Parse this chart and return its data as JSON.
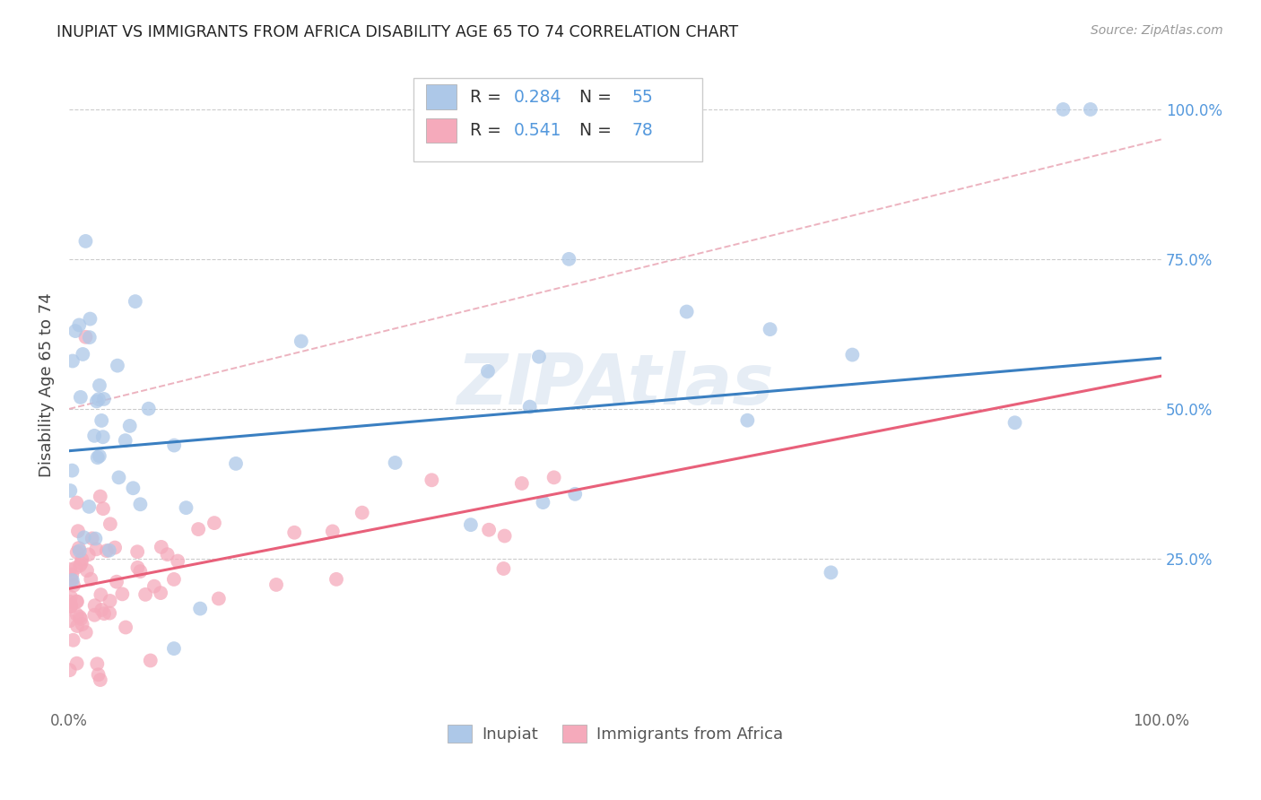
{
  "title": "INUPIAT VS IMMIGRANTS FROM AFRICA DISABILITY AGE 65 TO 74 CORRELATION CHART",
  "source": "Source: ZipAtlas.com",
  "ylabel": "Disability Age 65 to 74",
  "watermark": "ZIPAtlas",
  "legend_label1": "Inupiat",
  "legend_label2": "Immigrants from Africa",
  "R1": "0.284",
  "N1": "55",
  "R2": "0.541",
  "N2": "78",
  "blue_color": "#adc8e8",
  "pink_color": "#f5aabb",
  "blue_line_color": "#3a7fc1",
  "pink_line_color": "#e8607a",
  "axis_label_color": "#5599dd",
  "grid_color": "#cccccc",
  "background_color": "#ffffff",
  "blue_line_y0": 0.43,
  "blue_line_y1": 0.585,
  "pink_line_y0": 0.2,
  "pink_line_y1": 0.555,
  "dashed_line_color": "#e8a0b0",
  "dashed_line_y0": 0.5,
  "dashed_line_y1": 0.95,
  "ylim_low": 0.0,
  "ylim_high": 1.08,
  "xlim_low": 0.0,
  "xlim_high": 1.0
}
